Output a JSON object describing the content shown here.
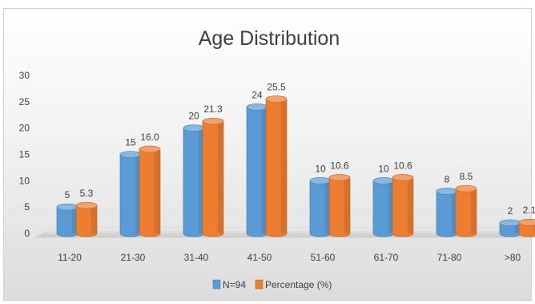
{
  "chart_data": {
    "type": "bar",
    "title": "Age Distribution",
    "categories": [
      "11-20",
      "21-30",
      "31-40",
      "41-50",
      "51-60",
      "61-70",
      "71-80",
      ">80"
    ],
    "series": [
      {
        "name": "N=94",
        "color": "#5b9bd5",
        "values": [
          5,
          15,
          20,
          24,
          10,
          10,
          8,
          2
        ]
      },
      {
        "name": "Percentage (%)",
        "color": "#ed7d31",
        "values": [
          5.3,
          16.0,
          21.3,
          25.5,
          10.6,
          10.6,
          8.5,
          2.1
        ]
      }
    ],
    "data_labels": [
      [
        "5",
        "15",
        "20",
        "24",
        "10",
        "10",
        "8",
        "2"
      ],
      [
        "5.3",
        "16.0",
        "21.3",
        "25.5",
        "10.6",
        "10.6",
        "8.5",
        "2.1"
      ]
    ],
    "y_ticks": [
      "0",
      "5",
      "10",
      "15",
      "20",
      "25",
      "30"
    ],
    "ylim": [
      0,
      30
    ],
    "grid": false,
    "legend_position": "bottom",
    "style": "3d-cylinder"
  }
}
